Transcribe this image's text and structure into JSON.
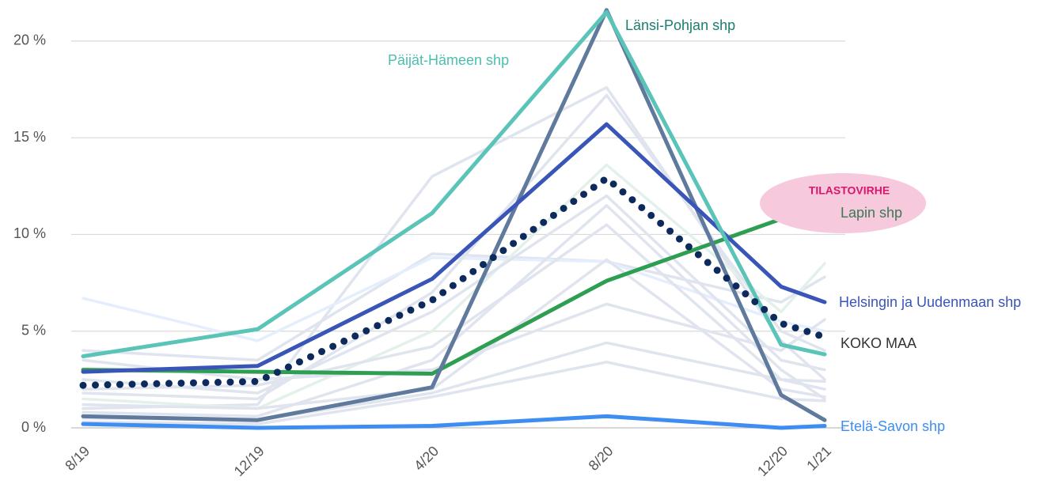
{
  "chart_data": {
    "type": "line",
    "x": [
      "8/19",
      "12/19",
      "4/20",
      "8/20",
      "12/20",
      "1/21"
    ],
    "ylim": [
      0,
      22
    ],
    "yticks": [
      {
        "value": 0,
        "label": "0 %"
      },
      {
        "value": 5,
        "label": "5 %"
      },
      {
        "value": 10,
        "label": "10 %"
      },
      {
        "value": 15,
        "label": "15 %"
      },
      {
        "value": 20,
        "label": "20 %"
      }
    ],
    "grid": true,
    "annotation": "TILASTOVIRHE",
    "series": [
      {
        "color": "#dfe4ee",
        "values": [
          1.0,
          1.2,
          13.0,
          17.6,
          4.5,
          2.5
        ]
      },
      {
        "color": "#dfe4ee",
        "values": [
          4.0,
          3.5,
          9.0,
          8.6,
          6.5,
          7.8
        ]
      },
      {
        "color": "#e4eefc",
        "values": [
          6.7,
          4.5,
          8.8,
          8.6,
          5.5,
          5.0
        ]
      },
      {
        "color": "#e3f1ea",
        "values": [
          1.5,
          1.0,
          5.0,
          13.6,
          6.0,
          8.5
        ]
      },
      {
        "color": "#dfe4ee",
        "values": [
          0.8,
          0.6,
          3.5,
          11.5,
          3.0,
          1.5
        ]
      },
      {
        "color": "#dfe4ee",
        "values": [
          2.0,
          2.2,
          4.2,
          10.5,
          2.5,
          2.0
        ]
      },
      {
        "color": "#dfe4ee",
        "values": [
          1.2,
          1.0,
          2.0,
          8.7,
          2.0,
          1.6
        ]
      },
      {
        "color": "#dfe4ee",
        "values": [
          3.5,
          2.5,
          3.0,
          6.4,
          4.0,
          5.6
        ]
      },
      {
        "color": "#dfe4ee",
        "values": [
          0.5,
          0.4,
          1.8,
          4.4,
          2.5,
          2.4
        ]
      },
      {
        "color": "#dfe4ee",
        "values": [
          0.3,
          0.2,
          1.6,
          3.4,
          1.5,
          1.4
        ]
      },
      {
        "color": "#dfe4ee",
        "values": [
          2.5,
          1.8,
          6.0,
          12.0,
          3.5,
          3.0
        ]
      },
      {
        "color": "#dfe4ee",
        "values": [
          1.8,
          1.5,
          7.0,
          17.2,
          5.0,
          4.0
        ]
      },
      {
        "name": "Etelä-Savon shp",
        "color": "#3d8ef0",
        "label_color": "#3d8ef0",
        "values": [
          0.2,
          0.0,
          0.1,
          0.6,
          0.0,
          0.1
        ]
      },
      {
        "name": "Lapin shp",
        "color": "#2e9e52",
        "label_color": "#3b7a55",
        "values": [
          3.0,
          2.9,
          2.8,
          7.6,
          10.8,
          11.1
        ]
      },
      {
        "name": "Länsi-Pohjan shp",
        "color": "#5f7a9c",
        "label_color": "#1b7d70",
        "values": [
          0.6,
          0.4,
          2.1,
          21.6,
          1.7,
          0.4
        ]
      },
      {
        "name": "Helsingin ja Uudenmaan shp",
        "color": "#3a55b8",
        "label_color": "#3a55b8",
        "values": [
          2.9,
          3.2,
          7.7,
          15.7,
          7.3,
          6.5
        ]
      },
      {
        "name": "Päijät-Hämeen shp",
        "color": "#5bc4b8",
        "label_color": "#4dbdb0",
        "values": [
          3.7,
          5.1,
          11.1,
          21.5,
          4.3,
          3.8
        ]
      },
      {
        "name": "KOKO MAA",
        "color": "#0d2a5c",
        "label_color": "#333333",
        "dash": "dotted",
        "values": [
          2.2,
          2.4,
          6.6,
          12.9,
          5.4,
          4.7
        ]
      }
    ]
  }
}
